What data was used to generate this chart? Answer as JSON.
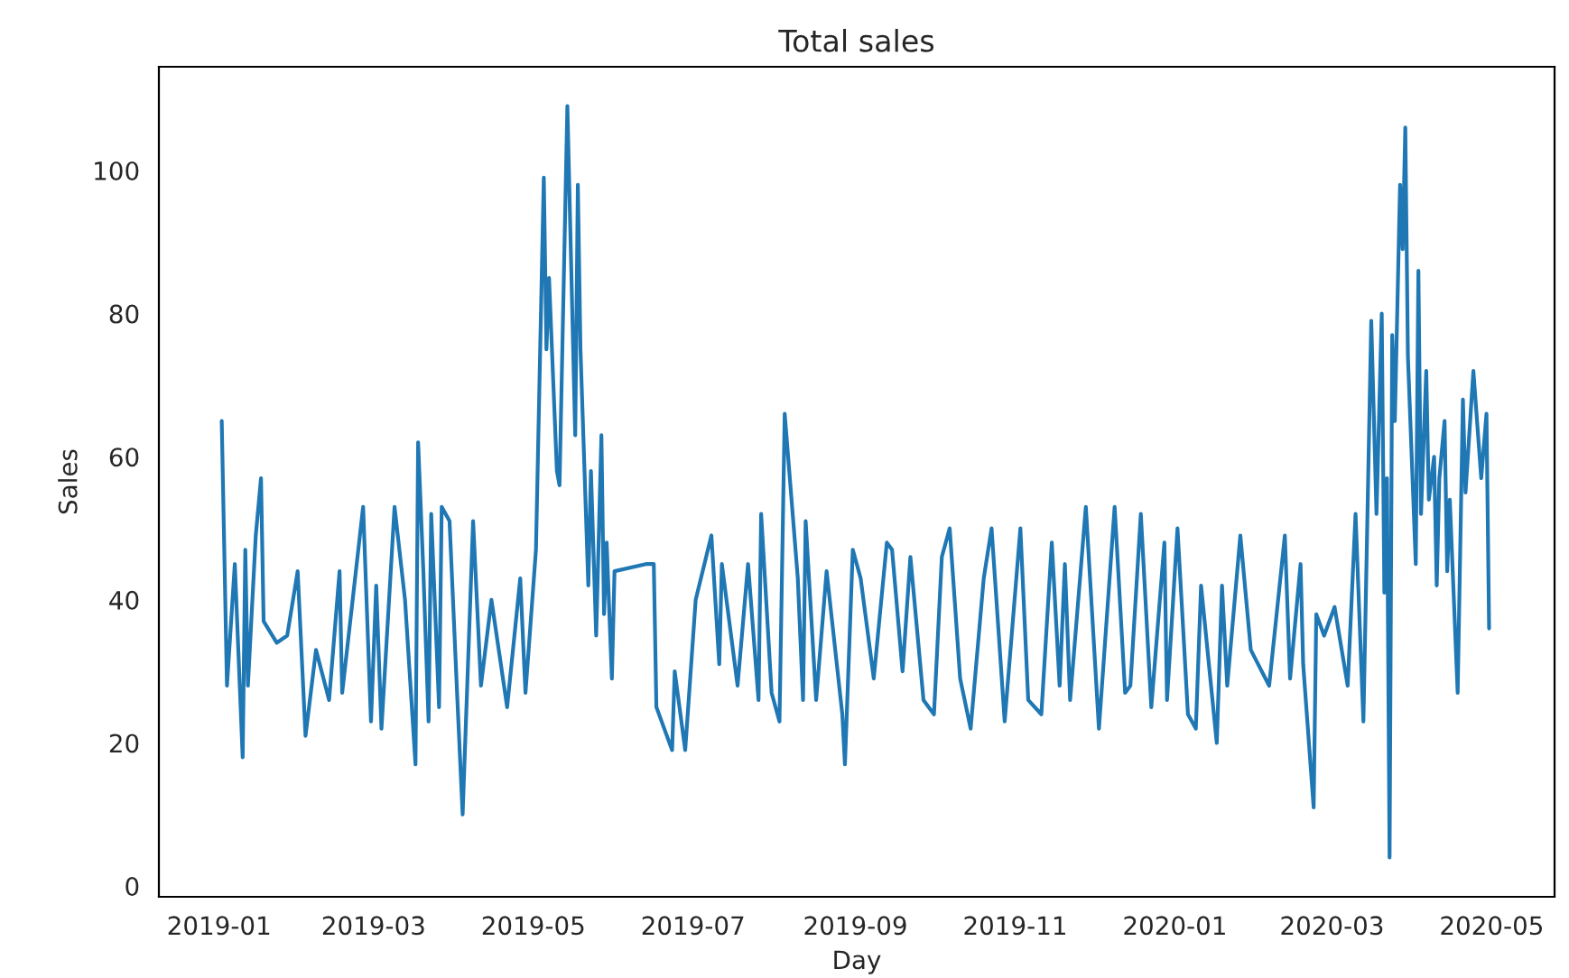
{
  "chart_data": {
    "type": "line",
    "title": "Total sales",
    "xlabel": "Day",
    "ylabel": "Sales",
    "x": [
      "2019-01-02",
      "2019-01-04",
      "2019-01-07",
      "2019-01-10",
      "2019-01-11",
      "2019-01-12",
      "2019-01-15",
      "2019-01-17",
      "2019-01-18",
      "2019-01-23",
      "2019-01-27",
      "2019-01-31",
      "2019-02-03",
      "2019-02-07",
      "2019-02-12",
      "2019-02-16",
      "2019-02-17",
      "2019-02-25",
      "2019-02-28",
      "2019-03-02",
      "2019-03-04",
      "2019-03-09",
      "2019-03-13",
      "2019-03-17",
      "2019-03-18",
      "2019-03-20",
      "2019-03-22",
      "2019-03-23",
      "2019-03-26",
      "2019-03-27",
      "2019-03-30",
      "2019-04-02",
      "2019-04-04",
      "2019-04-08",
      "2019-04-11",
      "2019-04-15",
      "2019-04-21",
      "2019-04-26",
      "2019-04-28",
      "2019-05-02",
      "2019-05-05",
      "2019-05-06",
      "2019-05-07",
      "2019-05-10",
      "2019-05-11",
      "2019-05-14",
      "2019-05-17",
      "2019-05-18",
      "2019-05-19",
      "2019-05-22",
      "2019-05-23",
      "2019-05-25",
      "2019-05-27",
      "2019-05-28",
      "2019-05-29",
      "2019-05-31",
      "2019-06-01",
      "2019-06-13",
      "2019-06-16",
      "2019-06-17",
      "2019-06-20",
      "2019-06-23",
      "2019-06-24",
      "2019-06-28",
      "2019-07-02",
      "2019-07-08",
      "2019-07-11",
      "2019-07-12",
      "2019-07-18",
      "2019-07-22",
      "2019-07-26",
      "2019-07-27",
      "2019-07-31",
      "2019-08-03",
      "2019-08-05",
      "2019-08-10",
      "2019-08-12",
      "2019-08-13",
      "2019-08-17",
      "2019-08-21",
      "2019-08-27",
      "2019-08-28",
      "2019-08-31",
      "2019-09-03",
      "2019-09-08",
      "2019-09-13",
      "2019-09-15",
      "2019-09-19",
      "2019-09-22",
      "2019-09-27",
      "2019-10-01",
      "2019-10-04",
      "2019-10-07",
      "2019-10-11",
      "2019-10-15",
      "2019-10-20",
      "2019-10-23",
      "2019-10-28",
      "2019-11-03",
      "2019-11-06",
      "2019-11-11",
      "2019-11-15",
      "2019-11-18",
      "2019-11-20",
      "2019-11-22",
      "2019-11-28",
      "2019-12-03",
      "2019-12-09",
      "2019-12-13",
      "2019-12-15",
      "2019-12-19",
      "2019-12-23",
      "2019-12-28",
      "2019-12-29",
      "2020-01-02",
      "2020-01-06",
      "2020-01-09",
      "2020-01-11",
      "2020-01-17",
      "2020-01-19",
      "2020-01-21",
      "2020-01-26",
      "2020-01-30",
      "2020-02-06",
      "2020-02-12",
      "2020-02-14",
      "2020-02-18",
      "2020-02-19",
      "2020-02-23",
      "2020-02-24",
      "2020-02-27",
      "2020-03-02",
      "2020-03-07",
      "2020-03-10",
      "2020-03-13",
      "2020-03-16",
      "2020-03-18",
      "2020-03-20",
      "2020-03-21",
      "2020-03-22",
      "2020-03-23",
      "2020-03-24",
      "2020-03-25",
      "2020-03-27",
      "2020-03-28",
      "2020-03-29",
      "2020-03-30",
      "2020-04-02",
      "2020-04-03",
      "2020-04-04",
      "2020-04-06",
      "2020-04-07",
      "2020-04-09",
      "2020-04-10",
      "2020-04-11",
      "2020-04-13",
      "2020-04-14",
      "2020-04-15",
      "2020-04-18",
      "2020-04-20",
      "2020-04-21",
      "2020-04-24",
      "2020-04-27",
      "2020-04-29",
      "2020-04-30"
    ],
    "series": [
      {
        "color": "#1f77b4",
        "values": [
          65,
          28,
          45,
          18,
          47,
          28,
          49,
          57,
          37,
          34,
          35,
          44,
          21,
          33,
          26,
          44,
          27,
          53,
          23,
          42,
          22,
          53,
          40,
          17,
          62,
          44,
          23,
          52,
          25,
          53,
          51,
          26,
          10,
          51,
          28,
          40,
          25,
          43,
          27,
          47,
          99,
          75,
          85,
          58,
          56,
          109,
          63,
          98,
          75,
          42,
          58,
          35,
          63,
          38,
          48,
          29,
          44,
          45,
          45,
          25,
          22,
          19,
          30,
          19,
          40,
          49,
          31,
          45,
          28,
          45,
          26,
          52,
          27,
          23,
          66,
          43,
          26,
          51,
          26,
          44,
          24,
          17,
          47,
          43,
          29,
          48,
          47,
          30,
          46,
          26,
          24,
          46,
          50,
          29,
          22,
          43,
          50,
          23,
          50,
          26,
          24,
          48,
          28,
          45,
          26,
          53,
          22,
          53,
          27,
          28,
          52,
          25,
          48,
          26,
          50,
          24,
          22,
          42,
          20,
          42,
          28,
          49,
          33,
          28,
          49,
          29,
          45,
          31,
          11,
          38,
          35,
          39,
          28,
          52,
          23,
          79,
          52,
          80,
          41,
          57,
          4,
          77,
          65,
          98,
          89,
          106,
          74,
          45,
          86,
          52,
          72,
          54,
          60,
          42,
          57,
          65,
          44,
          54,
          27,
          68,
          55,
          72,
          57,
          66,
          36
        ]
      }
    ],
    "xlim": [
      "2018-12-09",
      "2020-05-25"
    ],
    "xticks": [
      {
        "value": "2019-01-01",
        "label": "2019-01"
      },
      {
        "value": "2019-03-01",
        "label": "2019-03"
      },
      {
        "value": "2019-05-01",
        "label": "2019-05"
      },
      {
        "value": "2019-07-01",
        "label": "2019-07"
      },
      {
        "value": "2019-09-01",
        "label": "2019-09"
      },
      {
        "value": "2019-11-01",
        "label": "2019-11"
      },
      {
        "value": "2020-01-01",
        "label": "2020-01"
      },
      {
        "value": "2020-03-01",
        "label": "2020-03"
      },
      {
        "value": "2020-05-01",
        "label": "2020-05"
      }
    ],
    "ylim": [
      -1.5,
      114.5
    ],
    "yticks": [
      0,
      20,
      40,
      60,
      80,
      100
    ],
    "grid": false
  }
}
